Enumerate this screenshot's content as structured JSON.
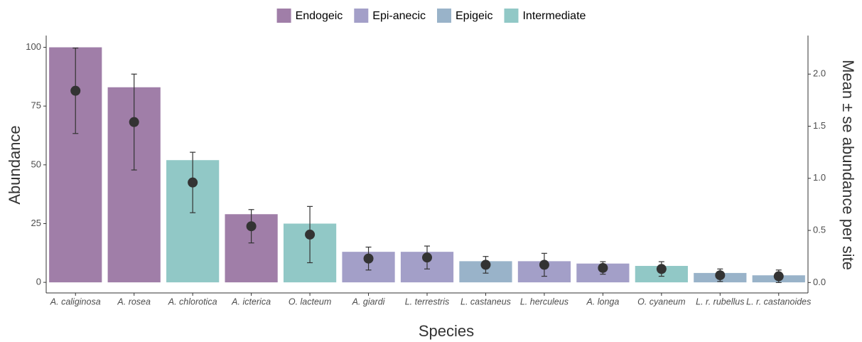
{
  "chart_data": {
    "type": "bar",
    "categories": [
      "A. caliginosa",
      "A. rosea",
      "A. chlorotica",
      "A. icterica",
      "O. lacteum",
      "A. giardi",
      "L. terrestris",
      "L. castaneus",
      "L. herculeus",
      "A. longa",
      "O. cyaneum",
      "L. r. rubellus",
      "L. r. castanoides"
    ],
    "series": [
      {
        "name": "Endogeic",
        "color": "#a07ea8",
        "values": [
          100,
          83,
          null,
          29,
          null,
          null,
          null,
          null,
          null,
          null,
          null,
          null,
          null
        ]
      },
      {
        "name": "Epi-anecic",
        "color": "#a39fc8",
        "values": [
          null,
          null,
          null,
          null,
          null,
          13,
          13,
          null,
          9,
          8,
          null,
          null,
          null
        ]
      },
      {
        "name": "Epigeic",
        "color": "#99b3c9",
        "values": [
          null,
          null,
          null,
          null,
          null,
          null,
          null,
          9,
          null,
          null,
          null,
          4,
          3
        ]
      },
      {
        "name": "Intermediate",
        "color": "#91c8c6",
        "values": [
          null,
          null,
          52,
          null,
          25,
          null,
          null,
          null,
          null,
          null,
          7,
          null,
          null
        ]
      }
    ],
    "mean": {
      "axis": "y2",
      "color": "#333333",
      "values": [
        1.84,
        1.54,
        0.96,
        0.54,
        0.46,
        0.23,
        0.24,
        0.17,
        0.17,
        0.14,
        0.13,
        0.07,
        0.06
      ],
      "errors": [
        0.41,
        0.46,
        0.29,
        0.16,
        0.27,
        0.11,
        0.11,
        0.08,
        0.11,
        0.06,
        0.07,
        0.06,
        0.06
      ]
    },
    "xlabel": "Species",
    "ylabel": "Abundance",
    "y2label": "Mean ± se abundance per site",
    "ylim": [
      -4.5,
      105
    ],
    "yticks": [
      0,
      25,
      50,
      75,
      100
    ],
    "y2lim": [
      -0.1,
      2.37
    ],
    "y2ticks": [
      {
        "value": 0,
        "label": "0.0"
      },
      {
        "value": 0.5,
        "label": "0.5"
      },
      {
        "value": 1,
        "label": "1.0"
      },
      {
        "value": 1.5,
        "label": "1.5"
      },
      {
        "value": 2,
        "label": "2.0"
      }
    ],
    "legend": "top",
    "grid": false
  }
}
